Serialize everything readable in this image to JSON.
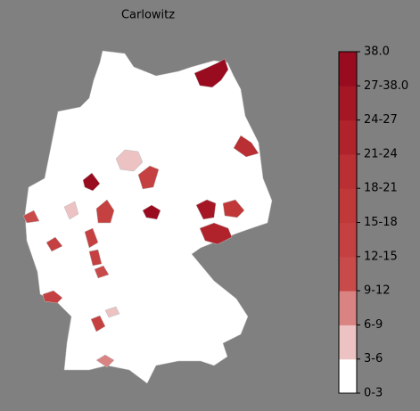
{
  "map": {
    "title": "Carlowitz",
    "colorbar": {
      "labels": [
        "0-3",
        "3-6",
        "6-9",
        "9-12",
        "12-15",
        "15-18",
        "18-21",
        "21-24",
        "24-27",
        "27-38.0",
        "38.0"
      ],
      "colors": [
        "#ffffff",
        "#edc2c2",
        "#da8383",
        "#c94a4a",
        "#c54040",
        "#c03838",
        "#b92f33",
        "#b0232b",
        "#a51725",
        "#990c1f"
      ]
    }
  }
}
